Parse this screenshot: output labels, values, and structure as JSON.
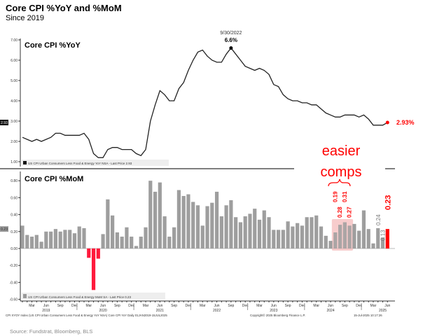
{
  "header": {
    "title": "Core CPI %YoY and %MoM",
    "subtitle": "Since 2019"
  },
  "colors": {
    "line": "#222222",
    "bar": "#9e9e9e",
    "negative": "#ff1a3c",
    "accent": "#ff0000",
    "highlight": "#f4b6b6"
  },
  "chart_data": [
    {
      "type": "line",
      "title": "Core CPI %YoY",
      "ylim": [
        1.0,
        7.0
      ],
      "yticks": [
        "7.00",
        "6.00",
        "5.00",
        "4.00",
        "3.00",
        "2.00",
        "1.00"
      ],
      "last_tag": "2.93",
      "legend": "US CPI Urban Consumers Less Food & Energy YoY NSA - Last Price 2.93",
      "peak_annotation": {
        "date": "9/30/2022",
        "value": "6.6%",
        "index": 44
      },
      "last_annotation": "2.93%",
      "start": "Jan 2019",
      "end": "Jun 2025",
      "values": [
        2.2,
        2.1,
        2.0,
        2.1,
        2.0,
        2.1,
        2.2,
        2.4,
        2.4,
        2.3,
        2.3,
        2.3,
        2.3,
        2.4,
        2.1,
        1.4,
        1.2,
        1.2,
        1.6,
        1.7,
        1.7,
        1.6,
        1.6,
        1.6,
        1.4,
        1.3,
        1.6,
        3.0,
        3.8,
        4.5,
        4.3,
        4.0,
        4.0,
        4.6,
        4.9,
        5.5,
        6.0,
        6.4,
        6.5,
        6.2,
        6.0,
        5.9,
        5.9,
        6.3,
        6.6,
        6.3,
        6.0,
        5.7,
        5.6,
        5.5,
        5.6,
        5.5,
        5.3,
        4.8,
        4.7,
        4.3,
        4.1,
        4.0,
        4.0,
        3.9,
        3.9,
        3.8,
        3.8,
        3.6,
        3.4,
        3.3,
        3.2,
        3.2,
        3.3,
        3.3,
        3.3,
        3.2,
        3.3,
        3.1,
        2.8,
        2.8,
        2.8,
        2.93
      ]
    },
    {
      "type": "bar",
      "title": "Core CPI %MoM",
      "ylim": [
        -0.6,
        0.8
      ],
      "yticks": [
        "0.80",
        "0.60",
        "0.40",
        "0.20",
        "0.00",
        "-0.20",
        "-0.40",
        "-0.60"
      ],
      "last_tag": "0.23",
      "legend": "US CPI Urban Consumers Less Food & Energy MoM SA - Last Price 0.23",
      "values": [
        0.27,
        0.16,
        0.14,
        0.16,
        0.08,
        0.2,
        0.2,
        0.23,
        0.2,
        0.22,
        0.22,
        0.18,
        0.26,
        0.24,
        -0.11,
        -0.49,
        -0.12,
        0.17,
        0.58,
        0.39,
        0.19,
        0.14,
        0.25,
        0.14,
        0.03,
        0.14,
        0.25,
        0.8,
        0.67,
        0.78,
        0.38,
        0.14,
        0.25,
        0.69,
        0.62,
        0.64,
        0.55,
        0.51,
        0.27,
        0.5,
        0.54,
        0.67,
        0.38,
        0.51,
        0.57,
        0.37,
        0.31,
        0.38,
        0.41,
        0.47,
        0.34,
        0.45,
        0.37,
        0.22,
        0.22,
        0.22,
        0.32,
        0.26,
        0.3,
        0.27,
        0.37,
        0.37,
        0.39,
        0.26,
        0.15,
        0.09,
        0.19,
        0.28,
        0.31,
        0.27,
        0.29,
        0.21,
        0.45,
        0.23,
        0.06,
        0.24,
        0.13,
        0.23
      ],
      "highlight": {
        "indices": [
          66,
          67,
          68,
          69
        ],
        "labels": [
          "0.19",
          "0.28",
          "0.31",
          "0.27"
        ],
        "annotation_line1": "easier",
        "annotation_line2": "comps"
      },
      "gray_labels": [
        {
          "index": 75,
          "text": "0.24"
        },
        {
          "index": 76,
          "text": "0.13"
        }
      ],
      "last_label": "0.23"
    }
  ],
  "xaxis": {
    "months": [
      "Mar",
      "Jun",
      "Sep",
      "Dec"
    ],
    "years": [
      "2019",
      "2020",
      "2021",
      "2022",
      "2023",
      "2024",
      "2025"
    ]
  },
  "footer": {
    "left": "CPI XYOY Index (US CPI Urban Consumers Less Food & Energy YoY NSA) Core CPI YoY   Daily 01JAN2019-15JUL2025",
    "middle": "Copyright© 2025 Bloomberg Finance L.P.",
    "right": "15-Jul-2025 10:17:26",
    "source": "Source: Fundstrat, Bloomberg, BLS"
  }
}
